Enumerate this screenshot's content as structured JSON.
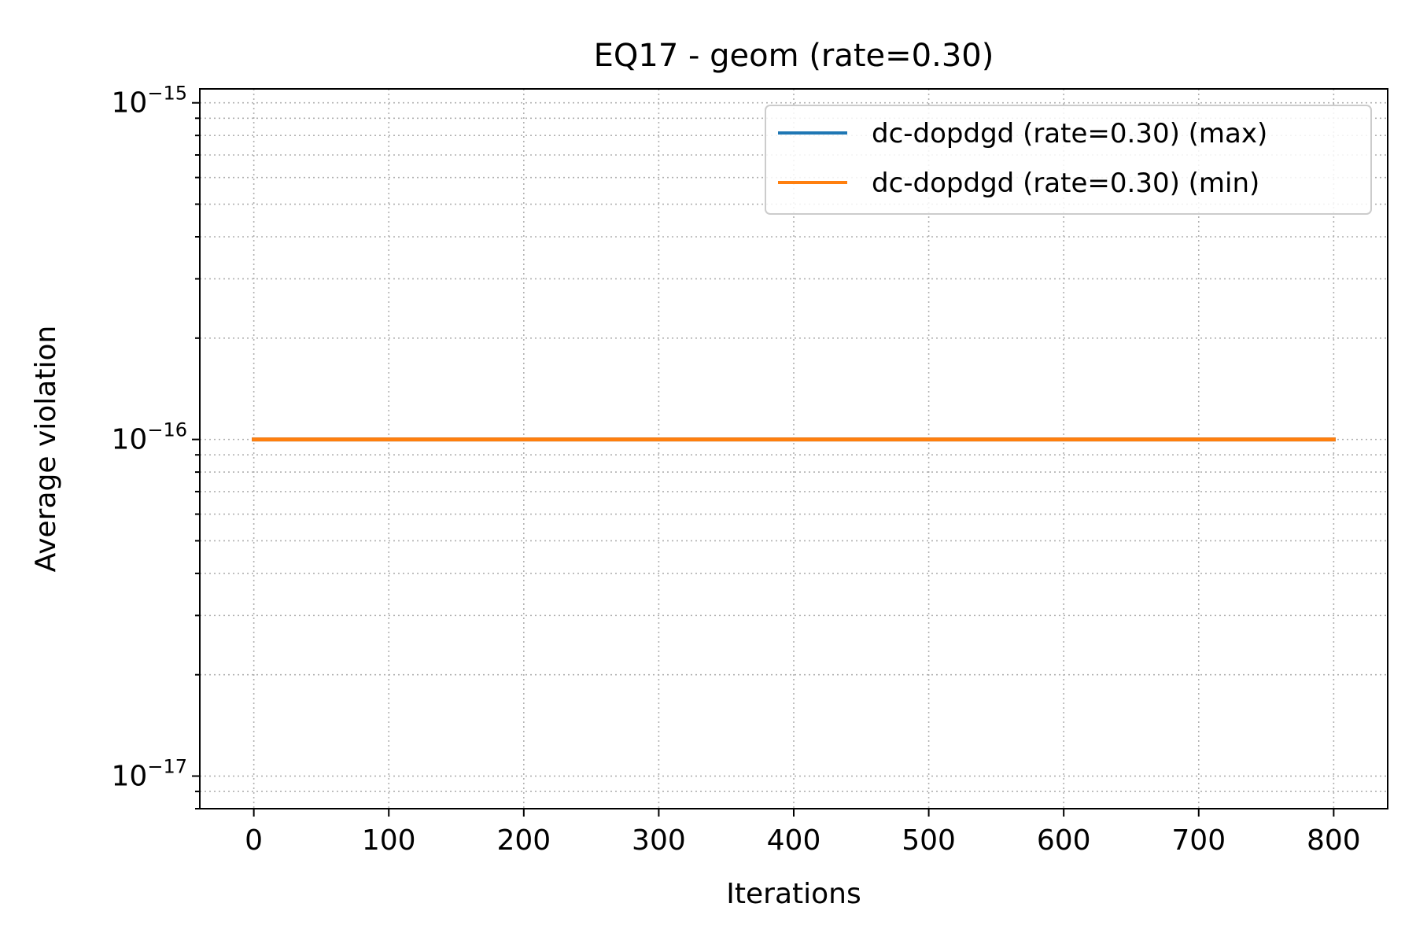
{
  "chart_data": {
    "type": "line",
    "title": "EQ17 - geom (rate=0.30)",
    "xlabel": "Iterations",
    "ylabel": "Average violation",
    "xlim": [
      -40,
      840
    ],
    "ylim": [
      8e-18,
      1.1e-15
    ],
    "yscale": "log",
    "xticks": [
      0,
      100,
      200,
      300,
      400,
      500,
      600,
      700,
      800
    ],
    "xtick_labels": [
      "0",
      "100",
      "200",
      "300",
      "400",
      "500",
      "600",
      "700",
      "800"
    ],
    "yticks": [
      {
        "value": 1e-17,
        "base": "10",
        "exp": "−17"
      },
      {
        "value": 1e-16,
        "base": "10",
        "exp": "−16"
      },
      {
        "value": 1e-15,
        "base": "10",
        "exp": "−15"
      }
    ],
    "grid": true,
    "legend_position": "top-right",
    "series": [
      {
        "name": "dc-dopdgd (rate=0.30) (max)",
        "color": "#1f77b4",
        "x": [
          0,
          800
        ],
        "y": [
          1e-16,
          1e-16
        ]
      },
      {
        "name": "dc-dopdgd (rate=0.30) (min)",
        "color": "#ff7f0e",
        "x": [
          0,
          800
        ],
        "y": [
          1e-16,
          1e-16
        ]
      }
    ]
  }
}
